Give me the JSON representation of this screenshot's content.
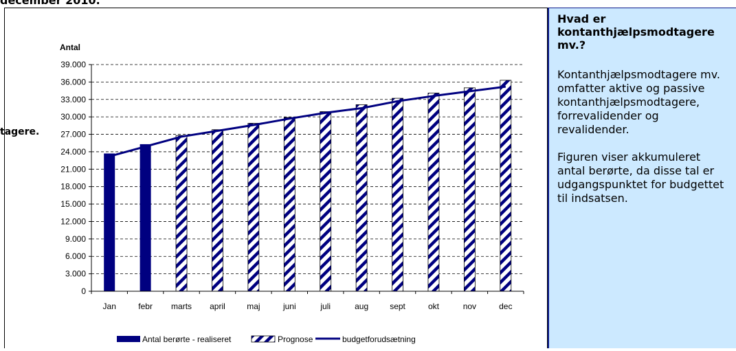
{
  "heading_cut": "december 2010.",
  "left_cut": "tagere.",
  "side_panel": {
    "title": "Hvad er kontanthjælpsmodtagere mv.?",
    "para1": "Kontanthjælpsmodtagere mv. omfatter aktive og passive kontanthjælpsmodtagere, forrevalidender og revalidender.",
    "para2": "Figuren viser akkumuleret antal berørte, da disse tal er udgangspunktet for budgettet til indsatsen."
  },
  "chart_data": {
    "type": "bar",
    "ylabel": "Antal",
    "ylim": [
      0,
      39000
    ],
    "y_ticks": [
      "0",
      "3.000",
      "6.000",
      "9.000",
      "12.000",
      "15.000",
      "18.000",
      "21.000",
      "24.000",
      "27.000",
      "30.000",
      "33.000",
      "36.000",
      "39.000"
    ],
    "grid": "horizontal-dashed",
    "legend_position": "bottom",
    "categories": [
      "Jan",
      "febr",
      "marts",
      "april",
      "maj",
      "juni",
      "juli",
      "aug",
      "sept",
      "okt",
      "nov",
      "dec"
    ],
    "series": [
      {
        "name": "Antal berørte - realiseret",
        "kind": "bar",
        "color": "#000080",
        "values": [
          23700,
          25300,
          null,
          null,
          null,
          null,
          null,
          null,
          null,
          null,
          null,
          null
        ]
      },
      {
        "name": "Prognose",
        "kind": "bar",
        "pattern": "diagonal-stripes",
        "color": "#000080",
        "values": [
          null,
          null,
          26800,
          27800,
          28900,
          29900,
          30900,
          32100,
          33200,
          34100,
          35000,
          36300
        ]
      },
      {
        "name": "budgetforudsætning",
        "kind": "line",
        "color": "#000080",
        "values": [
          23200,
          24900,
          26600,
          27600,
          28600,
          29700,
          30700,
          31500,
          32700,
          33600,
          34400,
          35200
        ]
      }
    ]
  }
}
